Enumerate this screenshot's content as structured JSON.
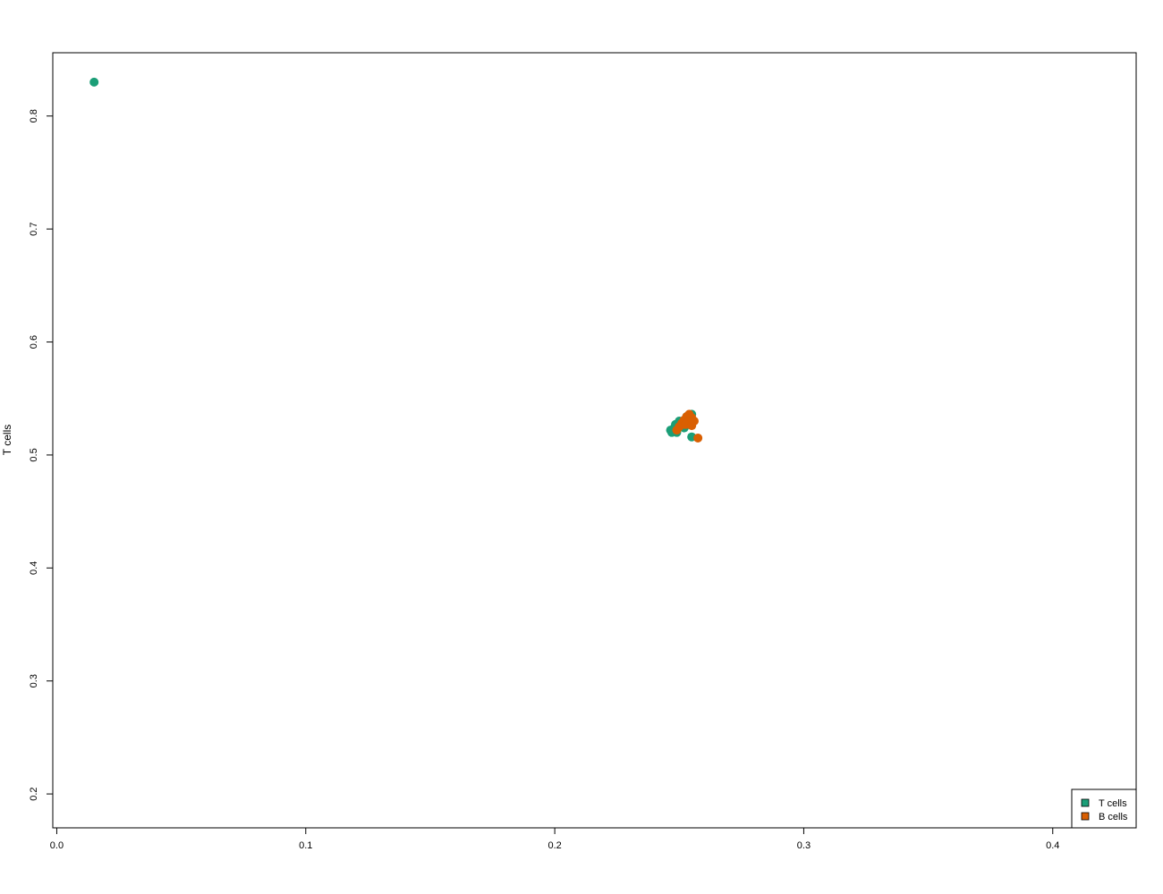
{
  "chart_data": {
    "type": "scatter",
    "title": "",
    "xlabel": "",
    "ylabel": "T cells",
    "xlim": [
      -0.0016,
      0.4335
    ],
    "ylim": [
      0.17,
      0.856
    ],
    "x_ticks": [
      0.0,
      0.1,
      0.2,
      0.3,
      0.4
    ],
    "x_tick_labels": [
      "0.0",
      "0.1",
      "0.2",
      "0.3",
      "0.4"
    ],
    "y_ticks": [
      0.2,
      0.3,
      0.4,
      0.5,
      0.6,
      0.7,
      0.8
    ],
    "y_tick_labels": [
      "0.2",
      "0.3",
      "0.4",
      "0.5",
      "0.6",
      "0.7",
      "0.8"
    ],
    "grid": false,
    "legend_position": "bottom-right",
    "series": [
      {
        "name": "T cells",
        "color": "#1b9e77",
        "points": [
          {
            "x": 0.015,
            "y": 0.83
          },
          {
            "x": 0.2465,
            "y": 0.522
          },
          {
            "x": 0.247,
            "y": 0.52
          },
          {
            "x": 0.248,
            "y": 0.524
          },
          {
            "x": 0.249,
            "y": 0.52
          },
          {
            "x": 0.2485,
            "y": 0.527
          },
          {
            "x": 0.25,
            "y": 0.53
          },
          {
            "x": 0.251,
            "y": 0.526
          },
          {
            "x": 0.252,
            "y": 0.524
          },
          {
            "x": 0.253,
            "y": 0.534
          },
          {
            "x": 0.255,
            "y": 0.536
          },
          {
            "x": 0.254,
            "y": 0.529
          },
          {
            "x": 0.255,
            "y": 0.516
          }
        ]
      },
      {
        "name": "B cells",
        "color": "#d95f02",
        "points": [
          {
            "x": 0.249,
            "y": 0.522
          },
          {
            "x": 0.25,
            "y": 0.525
          },
          {
            "x": 0.251,
            "y": 0.528
          },
          {
            "x": 0.252,
            "y": 0.531
          },
          {
            "x": 0.253,
            "y": 0.534
          },
          {
            "x": 0.254,
            "y": 0.536
          },
          {
            "x": 0.255,
            "y": 0.533
          },
          {
            "x": 0.2555,
            "y": 0.53
          },
          {
            "x": 0.2545,
            "y": 0.527
          },
          {
            "x": 0.2535,
            "y": 0.529
          },
          {
            "x": 0.2525,
            "y": 0.527
          },
          {
            "x": 0.255,
            "y": 0.526
          },
          {
            "x": 0.256,
            "y": 0.53
          },
          {
            "x": 0.2575,
            "y": 0.515
          }
        ]
      }
    ]
  }
}
